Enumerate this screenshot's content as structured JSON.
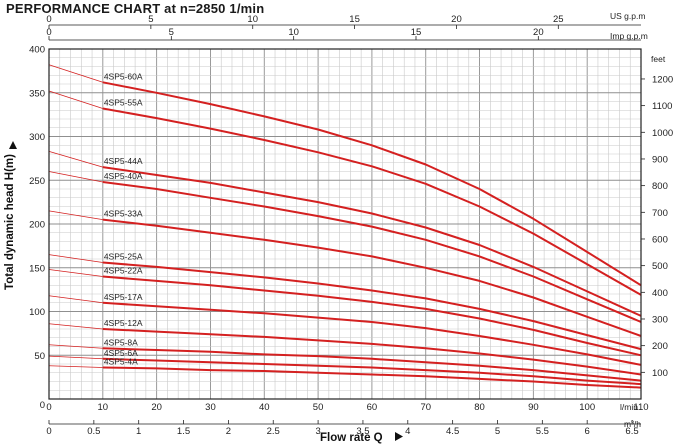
{
  "title": "PERFORMANCE CHART at n=2850 1/min",
  "chart_data": {
    "type": "line",
    "title": "PERFORMANCE CHART at n=2850 1/min",
    "xlabel": "Flow rate Q",
    "ylabel": "Total dynamic head H(m)",
    "x_unit": "l/min",
    "x_unit_m3h": "m³/h",
    "top_unit_us": "US g.p.m",
    "top_unit_imp": "Imp g.p.m",
    "right_unit": "feet",
    "xlim": [
      0,
      110
    ],
    "ylim": [
      0,
      400
    ],
    "grid": true,
    "x_ticks": [
      0,
      10,
      20,
      30,
      40,
      50,
      60,
      70,
      80,
      90,
      100,
      110
    ],
    "y_ticks": [
      50,
      100,
      150,
      200,
      250,
      300,
      350,
      400
    ],
    "y_zero_label": "0",
    "m3h_ticks": [
      0,
      0.5,
      1,
      1.5,
      2,
      2.5,
      3,
      3.5,
      4,
      4.5,
      5,
      5.5,
      6,
      6.5
    ],
    "m3h_tick_labels": [
      "0",
      "0.5",
      "1",
      "1.5",
      "2",
      "2.5",
      "3",
      "3.5",
      "4",
      "4.5",
      "5",
      "5.5",
      "6",
      "6.5"
    ],
    "us_gpm_ticks": [
      0,
      5,
      10,
      15,
      20,
      25
    ],
    "imp_gpm_ticks": [
      0,
      5,
      10,
      15,
      20
    ],
    "feet_ticks": [
      100,
      200,
      300,
      400,
      500,
      600,
      700,
      800,
      900,
      1000,
      1100,
      1200
    ],
    "x_points": [
      10,
      20,
      30,
      40,
      50,
      60,
      70,
      80,
      90,
      100,
      110
    ],
    "series": [
      {
        "name": "4SP5-60A",
        "values": [
          362,
          350,
          337,
          323,
          308,
          290,
          268,
          240,
          206,
          168,
          130
        ],
        "h0": 382
      },
      {
        "name": "4SP5-55A",
        "values": [
          332,
          321,
          309,
          296,
          282,
          266,
          246,
          220,
          189,
          154,
          119
        ],
        "h0": 352
      },
      {
        "name": "4SP5-44A",
        "values": [
          265,
          256,
          247,
          236,
          225,
          212,
          196,
          176,
          151,
          123,
          95
        ],
        "h0": 283
      },
      {
        "name": "4SP5-40A",
        "values": [
          248,
          240,
          230,
          220,
          209,
          197,
          182,
          163,
          140,
          114,
          88
        ],
        "h0": 260
      },
      {
        "name": "4SP5-33A",
        "values": [
          205,
          198,
          190,
          182,
          173,
          163,
          150,
          135,
          116,
          94,
          72
        ],
        "h0": 215
      },
      {
        "name": "4SP5-25A",
        "values": [
          156,
          151,
          145,
          139,
          132,
          124,
          115,
          103,
          89,
          73,
          57
        ],
        "h0": 165
      },
      {
        "name": "4SP5-22A",
        "values": [
          140,
          135,
          130,
          124,
          118,
          111,
          103,
          92,
          79,
          64,
          50
        ],
        "h0": 148
      },
      {
        "name": "4SP5-17A",
        "values": [
          110,
          106,
          102,
          98,
          93,
          88,
          81,
          72,
          62,
          51,
          39
        ],
        "h0": 118
      },
      {
        "name": "4SP5-12A",
        "values": [
          80,
          77,
          74,
          71,
          67,
          63,
          58,
          52,
          45,
          37,
          28
        ],
        "h0": 86
      },
      {
        "name": "4SP5-8A",
        "values": [
          58,
          56,
          54,
          51,
          49,
          46,
          42,
          38,
          33,
          27,
          21
        ],
        "h0": 62
      },
      {
        "name": "4SP5-6A",
        "values": [
          46,
          44,
          42,
          40,
          38,
          36,
          33,
          30,
          26,
          21,
          17
        ],
        "h0": 49
      },
      {
        "name": "4SP5-4A",
        "values": [
          36,
          35,
          33,
          32,
          30,
          28,
          26,
          23,
          20,
          16,
          13
        ],
        "h0": 38
      }
    ]
  },
  "colors": {
    "curve": "#d42020",
    "grid_minor": "#c9c9c9",
    "grid_major": "#8f8f8f",
    "frame": "#222222"
  }
}
